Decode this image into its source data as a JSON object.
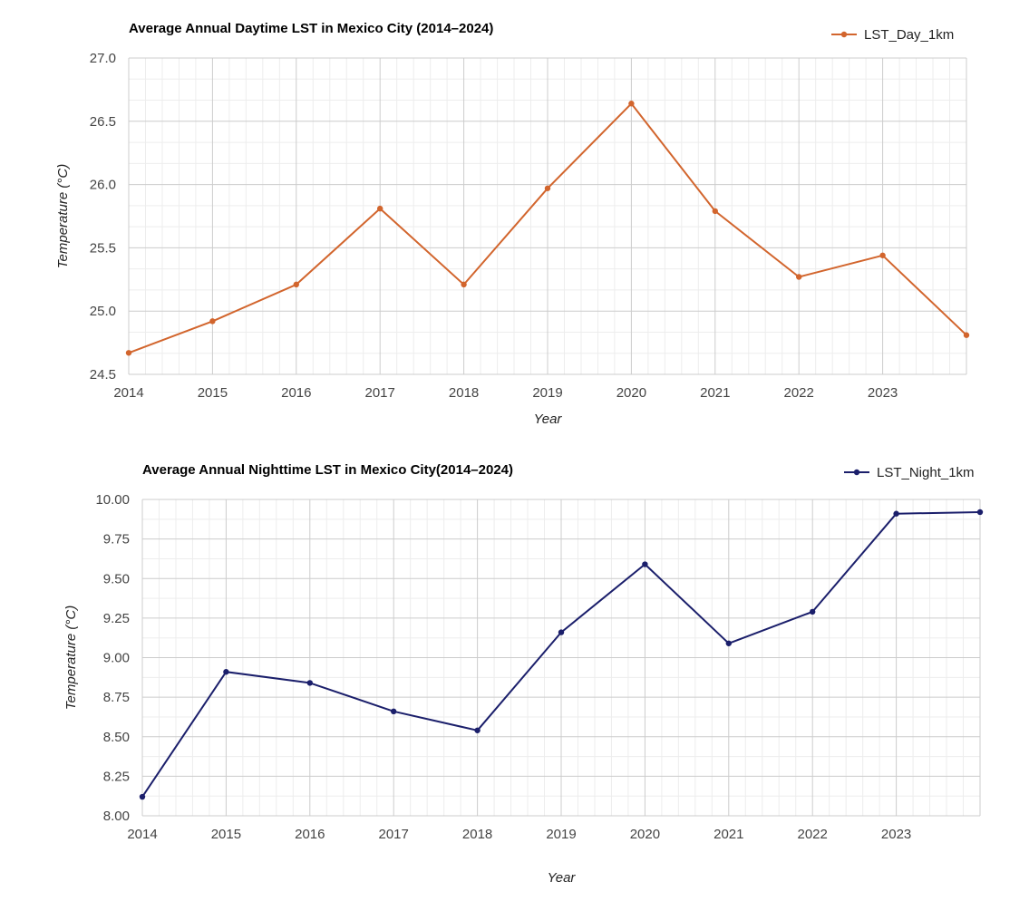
{
  "chart_data": [
    {
      "type": "line",
      "title": "Average Annual Daytime LST in Mexico City (2014–2024)",
      "xlabel": "Year",
      "ylabel": "Temperature (°C)",
      "x": [
        2014,
        2015,
        2016,
        2017,
        2018,
        2019,
        2020,
        2021,
        2022,
        2023,
        2024
      ],
      "x_ticks": [
        "2014",
        "2015",
        "2016",
        "2017",
        "2018",
        "2019",
        "2020",
        "2021",
        "2022",
        "2023"
      ],
      "xlim": [
        2014,
        2024
      ],
      "ylim": [
        24.5,
        27.0
      ],
      "y_ticks": [
        "24.5",
        "25.0",
        "25.5",
        "26.0",
        "26.5",
        "27.0"
      ],
      "grid": true,
      "legend_position": "top-right",
      "series": [
        {
          "name": "LST_Day_1km",
          "color": "#d2652d",
          "values": [
            24.67,
            24.92,
            25.21,
            25.81,
            25.21,
            25.97,
            26.64,
            25.79,
            25.27,
            25.44,
            24.81
          ]
        }
      ]
    },
    {
      "type": "line",
      "title": "Average Annual Nighttime LST in Mexico City(2014–2024)",
      "xlabel": "Year",
      "ylabel": "Temperature (°C)",
      "x": [
        2014,
        2015,
        2016,
        2017,
        2018,
        2019,
        2020,
        2021,
        2022,
        2023,
        2024
      ],
      "x_ticks": [
        "2014",
        "2015",
        "2016",
        "2017",
        "2018",
        "2019",
        "2020",
        "2021",
        "2022",
        "2023"
      ],
      "xlim": [
        2014,
        2024
      ],
      "ylim": [
        8.0,
        10.0
      ],
      "y_ticks": [
        "8.00",
        "8.25",
        "8.50",
        "8.75",
        "9.00",
        "9.25",
        "9.50",
        "9.75",
        "10.00"
      ],
      "grid": true,
      "legend_position": "top-right",
      "series": [
        {
          "name": "LST_Night_1km",
          "color": "#1b1f6b",
          "values": [
            8.12,
            8.91,
            8.84,
            8.66,
            8.54,
            9.16,
            9.59,
            9.09,
            9.29,
            9.91,
            9.92
          ]
        }
      ]
    }
  ]
}
